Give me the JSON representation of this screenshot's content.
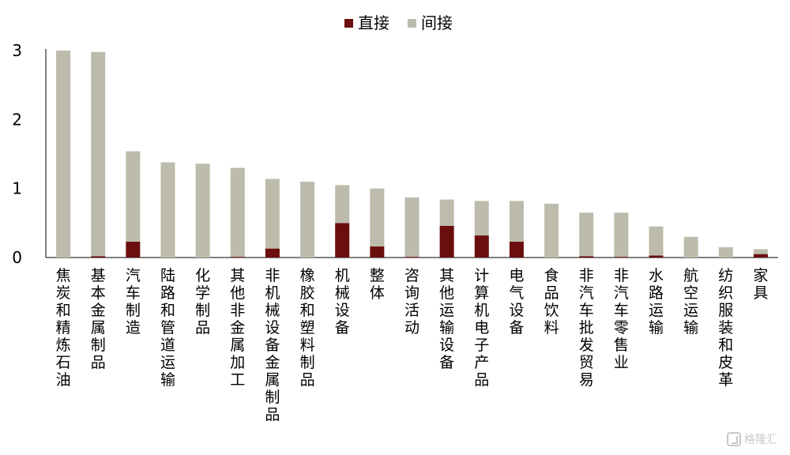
{
  "chart_data": {
    "type": "bar",
    "stacked": true,
    "title": "",
    "xlabel": "",
    "ylabel": "",
    "ylim": [
      0,
      3
    ],
    "yticks": [
      0,
      1,
      2,
      3
    ],
    "grid": false,
    "legend_position": "top-center",
    "categories": [
      "焦炭和精炼石油",
      "基本金属制品",
      "汽车制造",
      "陆路和管道运输",
      "化学制品",
      "其他非金属加工",
      "非机械设备金属制品",
      "橡胶和塑料制品",
      "机械设备",
      "整体",
      "咨询活动",
      "其他运输设备",
      "计算机电子产品",
      "电气设备",
      "食品饮料",
      "非汽车批发贸易",
      "非汽车零售业",
      "水路运输",
      "航空运输",
      "纺织服装和皮革",
      "家具"
    ],
    "series": [
      {
        "name": "直接",
        "color": "#6b0e0e",
        "values": [
          0.0,
          0.02,
          0.23,
          0.0,
          0.0,
          0.01,
          0.13,
          0.0,
          0.5,
          0.16,
          0.01,
          0.46,
          0.32,
          0.23,
          0.0,
          0.02,
          0.01,
          0.03,
          0.0,
          0.0,
          0.05
        ]
      },
      {
        "name": "间接",
        "color": "#bdbcac",
        "values": [
          3.0,
          2.96,
          1.31,
          1.38,
          1.36,
          1.29,
          1.01,
          1.1,
          0.55,
          0.84,
          0.86,
          0.38,
          0.5,
          0.59,
          0.78,
          0.63,
          0.64,
          0.42,
          0.3,
          0.15,
          0.07
        ]
      }
    ]
  },
  "watermark": {
    "text": "格隆汇",
    "icon": "gelonghui-logo-icon"
  }
}
